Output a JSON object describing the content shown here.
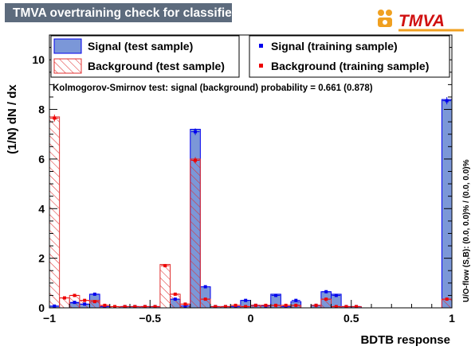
{
  "window": {
    "title": "TMVA overtraining check for classifier: BDTB"
  },
  "logo": {
    "text": "TMVA"
  },
  "colors": {
    "signal_fill": "#7b97d8",
    "signal_line": "#0000ee",
    "background_hatch": "#e03030",
    "background_marker": "#ee0000",
    "title_bar": "#5d6b7d"
  },
  "chart_data": {
    "type": "histogram",
    "xlabel": "BDTB response",
    "ylabel": "(1/N) dN / dx",
    "xlim": [
      -1,
      1
    ],
    "ylim": [
      0,
      11
    ],
    "xticks": [
      -1,
      -0.5,
      0,
      0.5,
      1
    ],
    "xtick_labels": [
      "−1",
      "−0.5",
      "0",
      "0.5",
      "1"
    ],
    "yticks": [
      0,
      2,
      4,
      6,
      8,
      10
    ],
    "ytick_labels": [
      "0",
      "2",
      "4",
      "6",
      "8",
      "10"
    ],
    "bin_edges_start": -1,
    "bin_width": 0.05,
    "ks_text": "Kolmogorov-Smirnov test: signal (background) probability = 0.661 (0.878)",
    "overflow_text": "U/O-flow (S,B): (0.0, 0.0)% / (0.0, 0.0)%",
    "legend_entries": [
      "Signal (test sample)",
      "Background (test sample)",
      "Signal (training sample)",
      "Background (training sample)"
    ],
    "series": [
      {
        "name": "Signal (test sample)",
        "style": "filled",
        "values": [
          0.07,
          0.0,
          0.2,
          0.15,
          0.55,
          0.05,
          0.0,
          0.05,
          0.05,
          0.05,
          0.05,
          0.0,
          0.35,
          0.08,
          7.2,
          0.85,
          0.05,
          0.05,
          0.05,
          0.3,
          0.1,
          0.08,
          0.55,
          0.05,
          0.25,
          0.0,
          0.1,
          0.65,
          0.55,
          0.05,
          0.05,
          0.0,
          0.0,
          0.0,
          0.0,
          0.0,
          0.0,
          0.0,
          0.0,
          8.4
        ]
      },
      {
        "name": "Background (test sample)",
        "style": "hatched",
        "values": [
          7.7,
          0.4,
          0.5,
          0.3,
          0.3,
          0.1,
          0.05,
          0.05,
          0.05,
          0.05,
          0.05,
          1.75,
          0.55,
          0.15,
          6.0,
          0.35,
          0.05,
          0.05,
          0.1,
          0.05,
          0.1,
          0.1,
          0.1,
          0.1,
          0.1,
          0.0,
          0.1,
          0.35,
          0.05,
          0.05,
          0.05,
          0.0,
          0.0,
          0.0,
          0.0,
          0.0,
          0.0,
          0.0,
          0.0,
          0.35
        ]
      },
      {
        "name": "Signal (training sample)",
        "style": "markers",
        "values": [
          0.07,
          0.0,
          0.22,
          0.15,
          0.55,
          0.05,
          0.0,
          0.05,
          0.05,
          0.05,
          0.05,
          0.0,
          0.35,
          0.08,
          7.1,
          0.85,
          0.05,
          0.05,
          0.05,
          0.3,
          0.1,
          0.08,
          0.5,
          0.05,
          0.3,
          0.0,
          0.1,
          0.65,
          0.5,
          0.05,
          0.05,
          0.0,
          0.0,
          0.0,
          0.0,
          0.0,
          0.0,
          0.0,
          0.0,
          8.35
        ]
      },
      {
        "name": "Background (training sample)",
        "style": "markers",
        "values": [
          7.65,
          0.4,
          0.5,
          0.3,
          0.25,
          0.1,
          0.05,
          0.05,
          0.05,
          0.05,
          0.05,
          1.7,
          0.55,
          0.15,
          5.95,
          0.35,
          0.05,
          0.05,
          0.1,
          0.05,
          0.1,
          0.1,
          0.1,
          0.1,
          0.1,
          0.0,
          0.1,
          0.35,
          0.05,
          0.05,
          0.05,
          0.0,
          0.0,
          0.0,
          0.0,
          0.0,
          0.0,
          0.0,
          0.0,
          0.35
        ]
      }
    ]
  }
}
